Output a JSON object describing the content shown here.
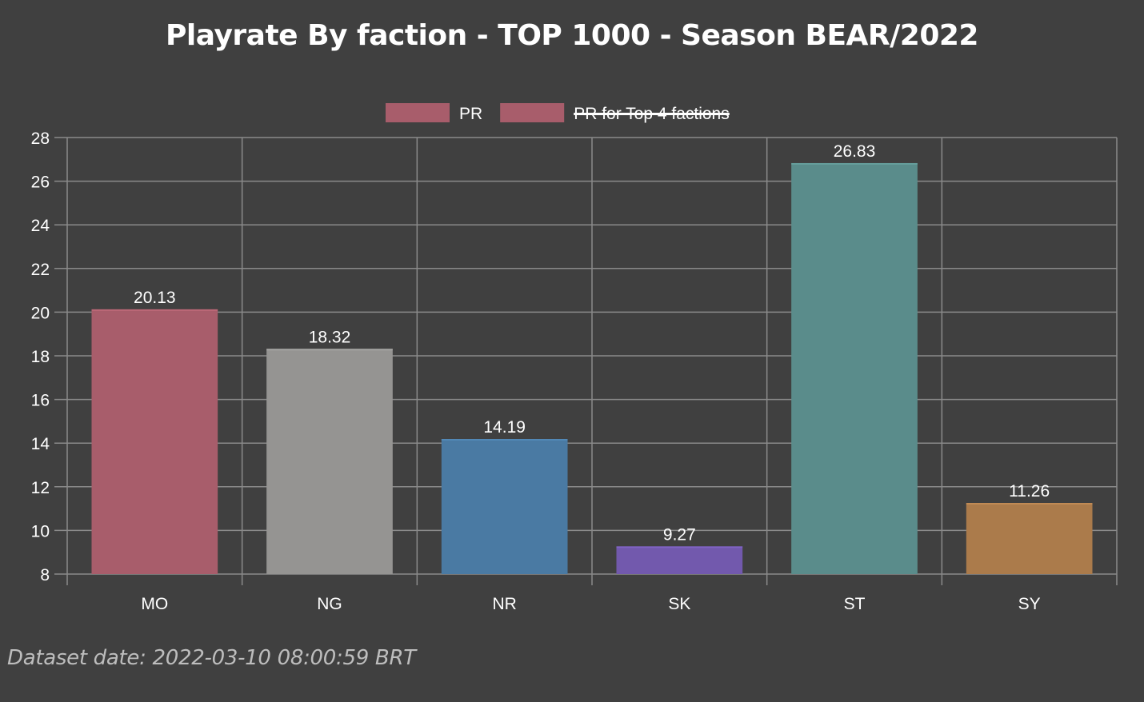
{
  "chart_data": {
    "type": "bar",
    "title": "Playrate By faction - TOP 1000 - Season BEAR/2022",
    "categories": [
      "MO",
      "NG",
      "NR",
      "SK",
      "ST",
      "SY"
    ],
    "values": [
      20.13,
      18.32,
      14.19,
      9.27,
      26.83,
      11.26
    ],
    "value_labels": [
      "20.13",
      "18.32",
      "14.19",
      "9.27",
      "26.83",
      "11.26"
    ],
    "colors": [
      "#a85d6b",
      "#959492",
      "#4a7aa3",
      "#7259ad",
      "#5a8c8b",
      "#ab7b4b"
    ],
    "ylim": [
      8,
      28
    ],
    "yticks": [
      "8",
      "10",
      "12",
      "14",
      "16",
      "18",
      "20",
      "22",
      "24",
      "26",
      "28"
    ],
    "grid": true,
    "legend_position": "top",
    "legend": [
      {
        "label": "PR",
        "color": "#a85d6b",
        "hidden": false
      },
      {
        "label": "PR for Top 4 factions",
        "color": "#a85d6b",
        "hidden": true
      }
    ],
    "xlabel": "",
    "ylabel": ""
  },
  "footer": "Dataset date: 2022-03-10 08:00:59 BRT"
}
